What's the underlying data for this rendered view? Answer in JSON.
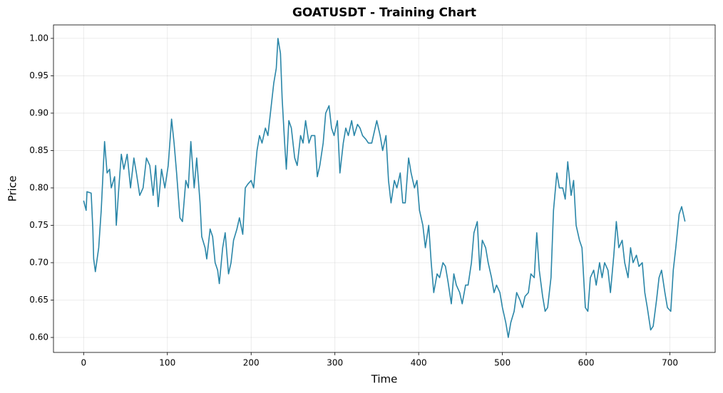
{
  "chart_data": {
    "type": "line",
    "title": "GOATUSDT - Training Chart",
    "x_label": "Time",
    "y_label": "Price",
    "color": "#2a86a8",
    "grid": true,
    "xlim": [
      -36,
      754
    ],
    "ylim": [
      0.58,
      1.018
    ],
    "xticks": [
      0,
      100,
      200,
      300,
      400,
      500,
      600,
      700
    ],
    "yticks": [
      {
        "value": 0.6,
        "label": "0.60"
      },
      {
        "value": 0.65,
        "label": "0.65"
      },
      {
        "value": 0.7,
        "label": "0.70"
      },
      {
        "value": 0.75,
        "label": "0.75"
      },
      {
        "value": 0.8,
        "label": "0.80"
      },
      {
        "value": 0.85,
        "label": "0.85"
      },
      {
        "value": 0.9,
        "label": "0.90"
      },
      {
        "value": 0.95,
        "label": "0.95"
      },
      {
        "value": 1.0,
        "label": "1.00"
      }
    ],
    "x": [
      0,
      3,
      4,
      9,
      11,
      12,
      14,
      18,
      21,
      25,
      28,
      31,
      33,
      37,
      39,
      42,
      45,
      48,
      52,
      56,
      60,
      63,
      67,
      71,
      75,
      79,
      83,
      86,
      89,
      93,
      97,
      101,
      105,
      108,
      111,
      115,
      118,
      122,
      125,
      128,
      132,
      135,
      139,
      141,
      145,
      147,
      151,
      154,
      157,
      160,
      162,
      166,
      169,
      173,
      176,
      179,
      183,
      186,
      190,
      193,
      196,
      200,
      203,
      207,
      210,
      213,
      217,
      220,
      224,
      227,
      230,
      232,
      235,
      237,
      240,
      242,
      245,
      248,
      252,
      255,
      259,
      262,
      265,
      269,
      272,
      276,
      279,
      282,
      286,
      289,
      293,
      296,
      299,
      303,
      306,
      310,
      313,
      316,
      320,
      323,
      327,
      330,
      333,
      337,
      340,
      344,
      347,
      350,
      354,
      357,
      361,
      364,
      367,
      371,
      374,
      378,
      381,
      384,
      388,
      391,
      395,
      398,
      401,
      405,
      408,
      412,
      415,
      418,
      422,
      425,
      429,
      432,
      435,
      439,
      442,
      445,
      449,
      452,
      456,
      459,
      463,
      466,
      470,
      473,
      476,
      480,
      483,
      487,
      490,
      493,
      497,
      500,
      504,
      507,
      510,
      514,
      517,
      521,
      524,
      527,
      531,
      534,
      538,
      541,
      544,
      548,
      551,
      554,
      558,
      561,
      565,
      568,
      572,
      575,
      578,
      582,
      585,
      588,
      592,
      595,
      599,
      602,
      605,
      609,
      612,
      616,
      619,
      622,
      626,
      629,
      633,
      636,
      639,
      643,
      646,
      650,
      653,
      656,
      660,
      663,
      667,
      670,
      673,
      677,
      680,
      684,
      687,
      690,
      694,
      697,
      701,
      704,
      707,
      711,
      714,
      718
    ],
    "values": [
      0.783,
      0.77,
      0.795,
      0.793,
      0.745,
      0.705,
      0.688,
      0.72,
      0.77,
      0.862,
      0.82,
      0.825,
      0.8,
      0.815,
      0.75,
      0.8,
      0.845,
      0.825,
      0.845,
      0.8,
      0.84,
      0.82,
      0.79,
      0.8,
      0.84,
      0.83,
      0.79,
      0.83,
      0.775,
      0.825,
      0.8,
      0.83,
      0.892,
      0.86,
      0.82,
      0.76,
      0.755,
      0.81,
      0.8,
      0.862,
      0.8,
      0.84,
      0.78,
      0.735,
      0.72,
      0.705,
      0.745,
      0.735,
      0.7,
      0.69,
      0.672,
      0.72,
      0.74,
      0.685,
      0.7,
      0.73,
      0.745,
      0.76,
      0.738,
      0.8,
      0.805,
      0.81,
      0.8,
      0.85,
      0.87,
      0.86,
      0.88,
      0.87,
      0.91,
      0.94,
      0.96,
      1.0,
      0.98,
      0.92,
      0.86,
      0.825,
      0.89,
      0.88,
      0.84,
      0.83,
      0.87,
      0.86,
      0.89,
      0.86,
      0.87,
      0.87,
      0.815,
      0.83,
      0.86,
      0.9,
      0.91,
      0.88,
      0.87,
      0.89,
      0.82,
      0.86,
      0.88,
      0.87,
      0.89,
      0.87,
      0.885,
      0.88,
      0.87,
      0.865,
      0.86,
      0.86,
      0.875,
      0.89,
      0.87,
      0.85,
      0.87,
      0.81,
      0.78,
      0.81,
      0.8,
      0.82,
      0.78,
      0.78,
      0.84,
      0.82,
      0.8,
      0.81,
      0.77,
      0.75,
      0.72,
      0.75,
      0.7,
      0.66,
      0.685,
      0.68,
      0.7,
      0.695,
      0.675,
      0.645,
      0.685,
      0.67,
      0.66,
      0.645,
      0.67,
      0.67,
      0.7,
      0.74,
      0.755,
      0.69,
      0.73,
      0.72,
      0.7,
      0.68,
      0.66,
      0.67,
      0.66,
      0.64,
      0.62,
      0.6,
      0.62,
      0.635,
      0.66,
      0.65,
      0.64,
      0.655,
      0.66,
      0.685,
      0.68,
      0.74,
      0.69,
      0.655,
      0.635,
      0.64,
      0.68,
      0.77,
      0.82,
      0.8,
      0.8,
      0.785,
      0.835,
      0.79,
      0.81,
      0.75,
      0.73,
      0.72,
      0.64,
      0.635,
      0.68,
      0.69,
      0.67,
      0.7,
      0.68,
      0.7,
      0.69,
      0.66,
      0.71,
      0.755,
      0.72,
      0.73,
      0.7,
      0.68,
      0.72,
      0.7,
      0.71,
      0.695,
      0.7,
      0.66,
      0.64,
      0.61,
      0.615,
      0.65,
      0.68,
      0.69,
      0.66,
      0.64,
      0.635,
      0.69,
      0.72,
      0.765,
      0.775,
      0.755
    ]
  }
}
